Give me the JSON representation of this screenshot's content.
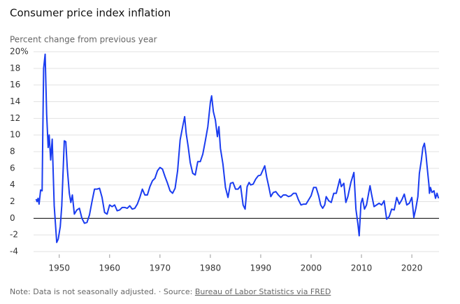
{
  "chart_data": {
    "type": "line",
    "title": "Consumer price index inflation",
    "subtitle": "Percent change from previous year",
    "note": "Note: Data is not seasonally adjusted.",
    "separator": "·",
    "source_label": "Source:",
    "source": "Bureau of Labor Statistics via FRED",
    "xlim": [
      1944.9,
      2025.4
    ],
    "xticks": [
      1950,
      1960,
      1970,
      1980,
      1990,
      2000,
      2010,
      2020
    ],
    "ylim": [
      -4,
      20
    ],
    "yticks": [
      -4,
      -2,
      0,
      2,
      4,
      6,
      8,
      10,
      12,
      14,
      16,
      18,
      {
        "value": 20,
        "label": "20%"
      }
    ],
    "grid": true,
    "series": [
      {
        "color": "#1a3cf0",
        "x": [
          1945.4,
          1945.6,
          1945.8,
          1946.0,
          1946.3,
          1946.6,
          1946.75,
          1946.9,
          1947.2,
          1947.5,
          1947.8,
          1948.0,
          1948.3,
          1948.6,
          1949.0,
          1949.5,
          1949.8,
          1950.2,
          1950.5,
          1951.0,
          1951.3,
          1951.6,
          1952.0,
          1952.3,
          1952.6,
          1953.0,
          1953.5,
          1954.0,
          1954.5,
          1955.0,
          1955.5,
          1956.0,
          1956.5,
          1957.0,
          1957.5,
          1958.0,
          1958.5,
          1959.0,
          1959.5,
          1960.0,
          1960.5,
          1961.0,
          1961.5,
          1962.0,
          1962.5,
          1963.0,
          1963.5,
          1964.0,
          1964.5,
          1965.0,
          1965.5,
          1966.0,
          1966.5,
          1967.0,
          1967.5,
          1968.0,
          1968.5,
          1969.0,
          1969.5,
          1970.0,
          1970.5,
          1971.0,
          1971.5,
          1972.0,
          1972.5,
          1973.0,
          1973.5,
          1974.0,
          1974.5,
          1974.9,
          1975.2,
          1975.6,
          1976.0,
          1976.5,
          1977.0,
          1977.5,
          1978.0,
          1978.5,
          1979.0,
          1979.5,
          1980.0,
          1980.25,
          1980.6,
          1981.0,
          1981.4,
          1981.7,
          1982.0,
          1982.5,
          1983.0,
          1983.5,
          1984.0,
          1984.5,
          1985.0,
          1985.5,
          1986.0,
          1986.5,
          1986.9,
          1987.3,
          1987.7,
          1988.0,
          1988.5,
          1989.0,
          1989.5,
          1990.0,
          1990.8,
          1991.2,
          1991.6,
          1992.0,
          1992.5,
          1993.0,
          1993.5,
          1994.0,
          1994.5,
          1995.0,
          1995.5,
          1996.0,
          1996.5,
          1997.0,
          1997.5,
          1998.0,
          1998.5,
          1999.0,
          1999.5,
          2000.0,
          2000.5,
          2001.0,
          2001.5,
          2001.9,
          2002.3,
          2002.7,
          2003.0,
          2003.5,
          2004.0,
          2004.5,
          2005.0,
          2005.7,
          2006.0,
          2006.5,
          2006.9,
          2007.3,
          2007.9,
          2008.5,
          2008.9,
          2009.3,
          2009.55,
          2009.9,
          2010.2,
          2010.6,
          2011.0,
          2011.7,
          2012.0,
          2012.5,
          2013.0,
          2013.5,
          2014.0,
          2014.5,
          2015.0,
          2015.5,
          2016.0,
          2016.5,
          2017.0,
          2017.5,
          2018.0,
          2018.5,
          2019.0,
          2019.5,
          2020.0,
          2020.4,
          2020.8,
          2021.2,
          2021.5,
          2021.9,
          2022.2,
          2022.5,
          2022.8,
          2023.0,
          2023.4,
          2023.5,
          2023.7,
          2024.0,
          2024.4,
          2024.7,
          2025.0,
          2025.3
        ],
        "values": [
          2.3,
          2.0,
          2.4,
          1.7,
          3.4,
          3.3,
          11,
          18,
          19.7,
          12.5,
          8.5,
          10,
          7,
          9.5,
          1.5,
          -2.9,
          -2.5,
          -1,
          1.5,
          9.3,
          9.2,
          6,
          3,
          1.9,
          2.8,
          0.5,
          1,
          1.2,
          0,
          -0.6,
          -0.5,
          0.4,
          2,
          3.5,
          3.5,
          3.6,
          2.5,
          0.7,
          0.5,
          1.6,
          1.4,
          1.6,
          0.9,
          1,
          1.3,
          1.3,
          1.2,
          1.5,
          1.1,
          1.2,
          1.7,
          2.5,
          3.5,
          2.8,
          2.8,
          3.8,
          4.5,
          4.8,
          5.7,
          6.1,
          5.9,
          5.0,
          4.2,
          3.3,
          3.0,
          3.6,
          5.7,
          9.4,
          11,
          12.2,
          10.2,
          8.6,
          6.7,
          5.4,
          5.2,
          6.8,
          6.8,
          7.7,
          9.3,
          11,
          13.9,
          14.7,
          12.8,
          11.8,
          9.8,
          11,
          8.4,
          6.5,
          3.7,
          2.5,
          4.2,
          4.3,
          3.5,
          3.5,
          3.9,
          1.6,
          1.1,
          3.8,
          4.3,
          4.0,
          4.1,
          4.7,
          5.1,
          5.2,
          6.3,
          4.9,
          3.8,
          2.6,
          3.1,
          3.2,
          2.8,
          2.5,
          2.8,
          2.8,
          2.6,
          2.7,
          3.0,
          3.0,
          2.2,
          1.6,
          1.7,
          1.7,
          2.2,
          2.7,
          3.7,
          3.7,
          2.7,
          1.6,
          1.2,
          1.6,
          2.6,
          2.1,
          1.9,
          3.0,
          3.0,
          4.7,
          3.8,
          4.2,
          1.9,
          2.6,
          4.3,
          5.5,
          1.1,
          -0.7,
          -2.1,
          1.8,
          2.4,
          1.1,
          1.6,
          3.9,
          2.9,
          1.4,
          1.6,
          1.8,
          1.6,
          2.1,
          -0.1,
          0.2,
          1.1,
          1.0,
          2.5,
          1.7,
          2.2,
          2.9,
          1.6,
          1.8,
          2.5,
          0.1,
          1.2,
          2.6,
          5.4,
          7.0,
          8.5,
          9.0,
          7.7,
          6.4,
          4.0,
          3.0,
          3.7,
          3.1,
          3.3,
          2.4,
          3.0,
          2.4
        ]
      }
    ]
  }
}
